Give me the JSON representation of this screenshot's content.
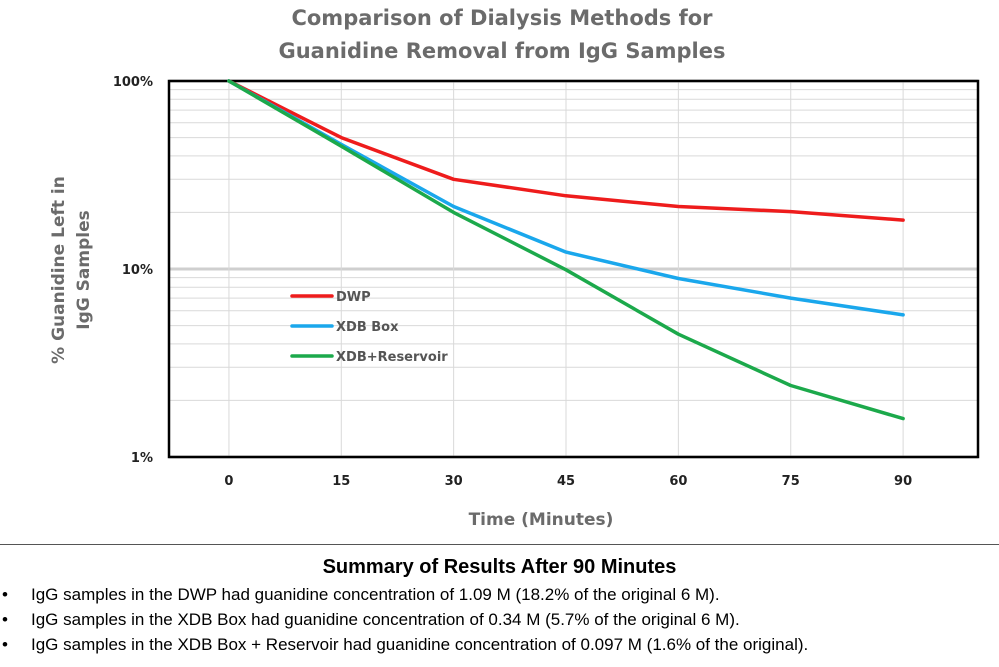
{
  "chart_data": {
    "type": "line",
    "title": [
      "Comparison of Dialysis Methods for",
      "Guanidine Removal from IgG Samples"
    ],
    "xlabel": "Time (Minutes)",
    "ylabel": [
      "% Guanidine Left in",
      "IgG Samples"
    ],
    "x": [
      0,
      15,
      30,
      45,
      60,
      75,
      90
    ],
    "x_tick_labels": [
      "0",
      "15",
      "30",
      "45",
      "60",
      "75",
      "90"
    ],
    "xlim": [
      -8,
      100
    ],
    "ylim": [
      1,
      100
    ],
    "yscale": "log",
    "y_tick_values": [
      100,
      10,
      1
    ],
    "y_tick_labels": [
      "100%",
      "10%",
      "1%"
    ],
    "grid": true,
    "legend_position": "center-left",
    "series": [
      {
        "name": "DWP",
        "color": "#ee1c1c",
        "values": [
          100,
          50,
          30,
          24.5,
          21.5,
          20.2,
          18.2
        ]
      },
      {
        "name": "XDB Box",
        "color": "#1aa7ec",
        "values": [
          100,
          46,
          21.5,
          12.3,
          8.9,
          7.0,
          5.7
        ]
      },
      {
        "name": "XDB+Reservoir",
        "color": "#1ca94b",
        "values": [
          100,
          45,
          20,
          9.9,
          4.5,
          2.4,
          1.6
        ]
      }
    ]
  },
  "summary": {
    "heading": "Summary of Results After 90 Minutes",
    "bullet": "•",
    "items": [
      "IgG samples in the DWP had guanidine concentration of 1.09 M (18.2% of the original 6 M).",
      "IgG samples in the XDB Box had guanidine concentration of 0.34 M (5.7% of the original 6 M).",
      "IgG samples in the XDB Box + Reservoir had guanidine concentration of 0.097 M (1.6% of the original)."
    ]
  }
}
